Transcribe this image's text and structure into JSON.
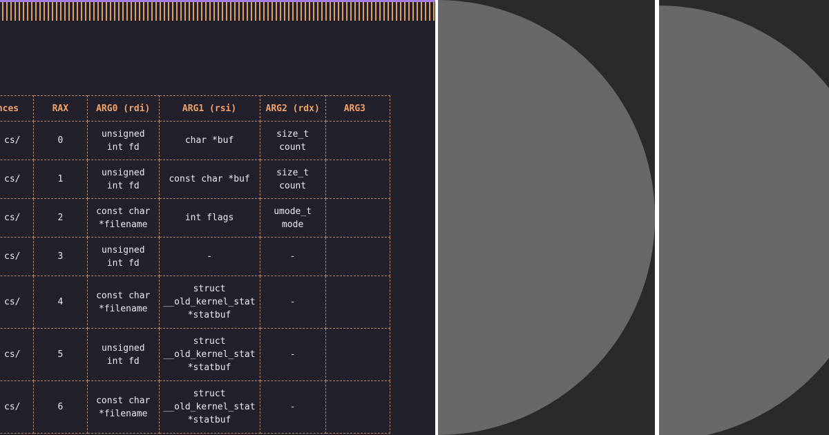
{
  "table": {
    "headers": [
      "ences",
      "RAX",
      "ARG0 (rdi)",
      "ARG1 (rsi)",
      "ARG2 (rdx)",
      "ARG3"
    ],
    "rows": [
      [
        "cs/",
        "0",
        "unsigned int fd",
        "char *buf",
        "size_t count",
        ""
      ],
      [
        "cs/",
        "1",
        "unsigned int fd",
        "const char *buf",
        "size_t count",
        ""
      ],
      [
        "cs/",
        "2",
        "const char *filename",
        "int flags",
        "umode_t mode",
        ""
      ],
      [
        "cs/",
        "3",
        "unsigned int fd",
        "-",
        "-",
        ""
      ],
      [
        "cs/",
        "4",
        "const char *filename",
        "struct __old_kernel_stat *statbuf",
        "-",
        ""
      ],
      [
        "cs/",
        "5",
        "unsigned int fd",
        "struct __old_kernel_stat *statbuf",
        "-",
        ""
      ],
      [
        "cs/",
        "6",
        "const char *filename",
        "struct __old_kernel_stat *statbuf",
        "-",
        ""
      ]
    ]
  },
  "colors": {
    "background": "#22202a",
    "header_text": "#f2a26b",
    "cell_text": "#eceaf0",
    "border": "#b7896a",
    "accent_strip": "#a57de6",
    "panel_bg": "#2a2a2a",
    "disc": "#686868"
  }
}
